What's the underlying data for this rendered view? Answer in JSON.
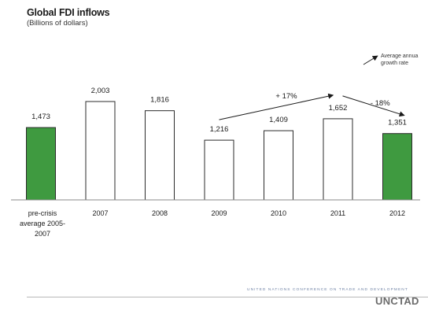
{
  "header": {
    "title": "Global FDI inflows",
    "subtitle": "(Billions of dollars)"
  },
  "legend": {
    "line1": "Average annua",
    "line2": "growth rate"
  },
  "footer": {
    "org": "UNITED NATIONS CONFERENCE ON TRADE AND DEVELOPMENT",
    "logo": "UNCTAD"
  },
  "colors": {
    "highlight": "#3f9a40",
    "plain": "#ffffff",
    "outline": "#2b2b2b"
  },
  "chart_data": {
    "type": "bar",
    "title": "Global FDI inflows",
    "subtitle": "(Billions of dollars)",
    "categories": [
      "pre-crisis average 2005-2007",
      "2007",
      "2008",
      "2009",
      "2010",
      "2011",
      "2012"
    ],
    "category_lines": [
      [
        "pre-crisis",
        "average 2005-",
        "2007"
      ],
      [
        "2007"
      ],
      [
        "2008"
      ],
      [
        "2009"
      ],
      [
        "2010"
      ],
      [
        "2011"
      ],
      [
        "2012"
      ]
    ],
    "values": [
      1473,
      2003,
      1816,
      1216,
      1409,
      1652,
      1351
    ],
    "value_labels": [
      "1,473",
      "2,003",
      "1,816",
      "1,216",
      "1,409",
      "1,652",
      "1,351"
    ],
    "highlighted": [
      true,
      false,
      false,
      false,
      false,
      false,
      true
    ],
    "ylim": [
      0,
      2003
    ],
    "annotations": [
      {
        "label": "+ 17%",
        "from": "2009",
        "to": "2011"
      },
      {
        "label": "- 18%",
        "from": "2011",
        "to": "2012"
      }
    ],
    "legend": "Average annual growth rate",
    "grid": false
  }
}
